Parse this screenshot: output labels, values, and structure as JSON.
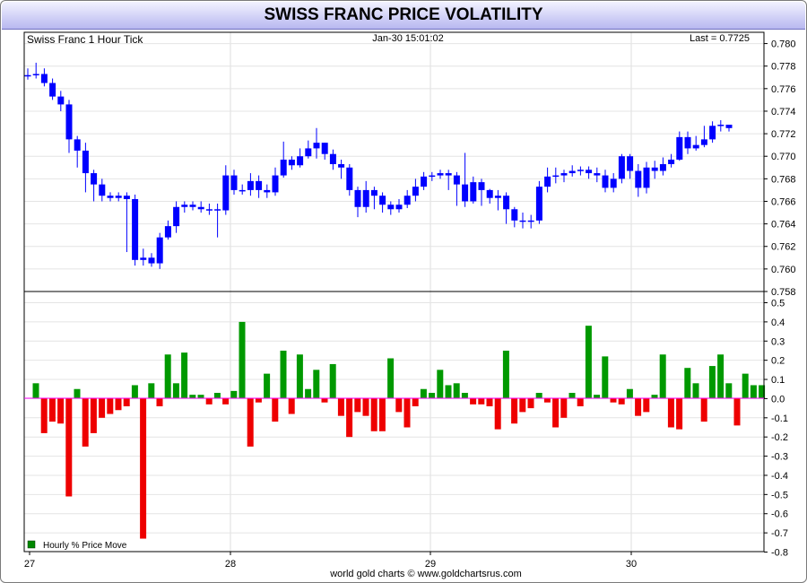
{
  "title": "SWISS FRANC PRICE VOLATILITY",
  "header": {
    "left": "Swiss Franc 1 Hour Tick",
    "center": "Jan-30  15:01:02",
    "right": "Last = 0.7725"
  },
  "legend": {
    "label": "Hourly % Price Move",
    "color": "#008800"
  },
  "footer": "world gold charts © www.goldchartsrus.com",
  "colors": {
    "candle": "#0000ff",
    "up_bar": "#009900",
    "down_bar": "#ee0000",
    "zero_line": "#ff00ff"
  },
  "chart_data": [
    {
      "type": "candlestick",
      "title": "Swiss Franc 1 Hour Tick",
      "ylim": [
        0.758,
        0.781
      ],
      "yticks": [
        "0.780",
        "0.778",
        "0.776",
        "0.774",
        "0.772",
        "0.770",
        "0.768",
        "0.766",
        "0.764",
        "0.762",
        "0.760",
        "0.758"
      ],
      "xticks": [
        "27",
        "28",
        "29",
        "30"
      ],
      "open": [
        0.7772,
        0.7772,
        0.7773,
        0.7765,
        0.7753,
        0.7746,
        0.7715,
        0.7705,
        0.7685,
        0.7675,
        0.7665,
        0.7663,
        0.7665,
        0.7662,
        0.7608,
        0.761,
        0.7605,
        0.7628,
        0.7638,
        0.7655,
        0.7657,
        0.7655,
        0.7653,
        0.7653,
        0.7652,
        0.7683,
        0.767,
        0.767,
        0.7678,
        0.767,
        0.7668,
        0.7683,
        0.7697,
        0.7692,
        0.77,
        0.7707,
        0.7712,
        0.7702,
        0.7693,
        0.769,
        0.767,
        0.7655,
        0.767,
        0.7665,
        0.7657,
        0.7653,
        0.7657,
        0.7665,
        0.7673,
        0.7682,
        0.7683,
        0.7685,
        0.7683,
        0.7675,
        0.766,
        0.7677,
        0.767,
        0.7663,
        0.7665,
        0.7653,
        0.7643,
        0.7643,
        0.7643,
        0.7673,
        0.7682,
        0.7683,
        0.7685,
        0.7687,
        0.7688,
        0.7685,
        0.7683,
        0.7672,
        0.768,
        0.77,
        0.7687,
        0.7672,
        0.769,
        0.7687,
        0.7693,
        0.7697,
        0.7717,
        0.7707,
        0.771,
        0.7715,
        0.7727,
        0.7728
      ],
      "close": [
        0.7772,
        0.7773,
        0.7765,
        0.7753,
        0.7746,
        0.7715,
        0.7705,
        0.7685,
        0.7675,
        0.7665,
        0.7663,
        0.7665,
        0.7662,
        0.7608,
        0.761,
        0.7605,
        0.7628,
        0.7638,
        0.7655,
        0.7657,
        0.7655,
        0.7653,
        0.7653,
        0.7652,
        0.7683,
        0.767,
        0.767,
        0.7678,
        0.767,
        0.7668,
        0.7683,
        0.7697,
        0.7692,
        0.77,
        0.7707,
        0.7712,
        0.7702,
        0.7693,
        0.769,
        0.767,
        0.7655,
        0.767,
        0.7665,
        0.7657,
        0.7653,
        0.7657,
        0.7665,
        0.7673,
        0.7682,
        0.7683,
        0.7685,
        0.7683,
        0.7675,
        0.766,
        0.7677,
        0.767,
        0.7663,
        0.7665,
        0.7653,
        0.7643,
        0.7643,
        0.7643,
        0.7673,
        0.7682,
        0.7683,
        0.7685,
        0.7687,
        0.7688,
        0.7685,
        0.7683,
        0.7672,
        0.768,
        0.77,
        0.7687,
        0.7672,
        0.769,
        0.7687,
        0.7693,
        0.7697,
        0.7717,
        0.7707,
        0.771,
        0.7715,
        0.7727,
        0.7728,
        0.7725
      ],
      "high": [
        0.7778,
        0.7783,
        0.7778,
        0.7769,
        0.7758,
        0.775,
        0.7718,
        0.7712,
        0.7688,
        0.768,
        0.7668,
        0.7668,
        0.7668,
        0.7666,
        0.7618,
        0.7614,
        0.7632,
        0.7643,
        0.766,
        0.766,
        0.766,
        0.766,
        0.7658,
        0.7658,
        0.7692,
        0.7688,
        0.7675,
        0.7685,
        0.7683,
        0.7675,
        0.769,
        0.7713,
        0.77,
        0.7707,
        0.7714,
        0.7725,
        0.7712,
        0.7706,
        0.7697,
        0.7693,
        0.7673,
        0.7678,
        0.7673,
        0.7668,
        0.766,
        0.7662,
        0.767,
        0.768,
        0.7686,
        0.7686,
        0.7688,
        0.7688,
        0.7686,
        0.7703,
        0.7682,
        0.768,
        0.7671,
        0.767,
        0.7668,
        0.7655,
        0.765,
        0.7648,
        0.7678,
        0.769,
        0.769,
        0.7688,
        0.7692,
        0.7691,
        0.7691,
        0.769,
        0.7688,
        0.7685,
        0.7702,
        0.7702,
        0.7693,
        0.7695,
        0.7696,
        0.7699,
        0.7702,
        0.7722,
        0.7722,
        0.7718,
        0.7727,
        0.7731,
        0.7732,
        0.7726
      ],
      "low": [
        0.7768,
        0.7769,
        0.7762,
        0.775,
        0.774,
        0.7703,
        0.769,
        0.7668,
        0.766,
        0.766,
        0.766,
        0.766,
        0.7615,
        0.7603,
        0.7603,
        0.7602,
        0.76,
        0.7626,
        0.7632,
        0.765,
        0.7652,
        0.765,
        0.7648,
        0.7628,
        0.7648,
        0.7666,
        0.7666,
        0.7665,
        0.7663,
        0.7663,
        0.7665,
        0.7681,
        0.7688,
        0.769,
        0.7698,
        0.7698,
        0.7697,
        0.7688,
        0.768,
        0.7665,
        0.7646,
        0.765,
        0.7653,
        0.765,
        0.7648,
        0.765,
        0.7654,
        0.766,
        0.767,
        0.7678,
        0.768,
        0.767,
        0.7656,
        0.7655,
        0.7658,
        0.7656,
        0.7658,
        0.7652,
        0.764,
        0.7637,
        0.7636,
        0.7636,
        0.764,
        0.7668,
        0.7676,
        0.7677,
        0.7682,
        0.7683,
        0.768,
        0.7677,
        0.7668,
        0.7668,
        0.7676,
        0.768,
        0.7664,
        0.7667,
        0.768,
        0.7683,
        0.769,
        0.7696,
        0.7702,
        0.7705,
        0.7708,
        0.7712,
        0.7722,
        0.7722
      ]
    },
    {
      "type": "bar",
      "title": "Hourly % Price Move",
      "ylim": [
        -0.8,
        0.5
      ],
      "yticks": [
        "0.5",
        "0.4",
        "0.3",
        "0.2",
        "0.1",
        "0.0",
        "-0.1",
        "-0.2",
        "-0.3",
        "-0.4",
        "-0.5",
        "-0.6",
        "-0.7",
        "-0.8"
      ],
      "values": [
        0.08,
        -0.18,
        -0.12,
        -0.13,
        -0.51,
        0.05,
        -0.25,
        -0.18,
        -0.1,
        -0.08,
        -0.06,
        -0.04,
        0.07,
        -0.73,
        0.08,
        -0.04,
        0.23,
        0.08,
        0.24,
        0.02,
        0.02,
        -0.03,
        0.03,
        -0.03,
        0.04,
        0.4,
        -0.25,
        -0.02,
        0.13,
        -0.12,
        0.25,
        -0.08,
        0.23,
        0.05,
        0.15,
        -0.02,
        0.18,
        -0.09,
        -0.2,
        -0.07,
        -0.09,
        -0.17,
        -0.17,
        0.21,
        -0.07,
        -0.15,
        -0.04,
        0.05,
        0.03,
        0.15,
        0.07,
        0.08,
        0.03,
        -0.03,
        -0.03,
        -0.04,
        -0.16,
        0.25,
        -0.13,
        -0.07,
        -0.05,
        0.03,
        -0.02,
        -0.15,
        -0.1,
        0.03,
        -0.04,
        0.38,
        0.02,
        0.22,
        -0.02,
        -0.03,
        0.05,
        -0.09,
        -0.07,
        0.02,
        0.23,
        -0.15,
        -0.16,
        0.16,
        0.08,
        -0.12,
        0.17,
        0.23,
        0.08,
        -0.14,
        0.13,
        0.07,
        0.07
      ]
    }
  ]
}
